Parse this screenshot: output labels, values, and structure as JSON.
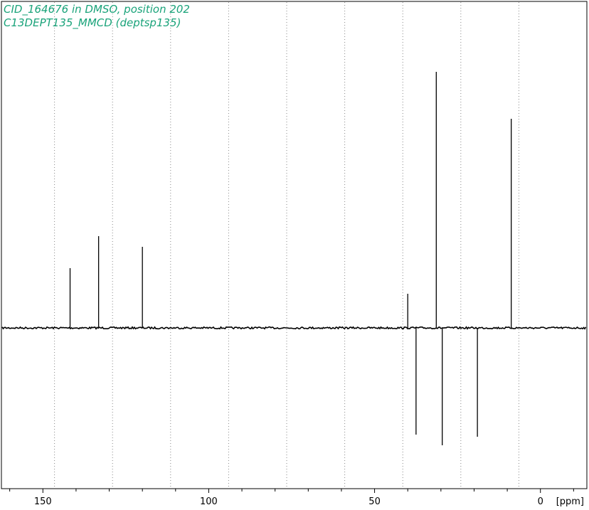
{
  "header": {
    "title_line1": "CID_164676 in DMSO, position 202",
    "title_line2": "C13DEPT135_MMCD (deptsp135)"
  },
  "colors": {
    "title": "#1aa37a",
    "spectrum": "#000000",
    "grid": "#888888",
    "frame": "#000000"
  },
  "chart_data": {
    "type": "line",
    "title": "CID_164676 in DMSO, position 202",
    "subtitle": "C13DEPT135_MMCD (deptsp135)",
    "xlabel": "[ppm]",
    "ylabel": "",
    "x_reversed": true,
    "xlim": [
      162.5,
      -14.0
    ],
    "ylim": [
      -1.13,
      1.27
    ],
    "grid": "vertical-dotted",
    "x_ticks": [
      150,
      100,
      50,
      0
    ],
    "x_tick_labels": [
      "150",
      "100",
      "50",
      "0"
    ],
    "x_tick_unit_label": "[ppm]",
    "x_minor_step": 10,
    "x_gridlines": [
      146.5,
      129.0,
      111.5,
      94.0,
      76.5,
      59.0,
      41.5,
      24.0,
      6.5
    ],
    "series": [
      {
        "values": [
          {
            "x": 141.8,
            "y": 0.28
          },
          {
            "x": 133.2,
            "y": 0.43
          },
          {
            "x": 120.0,
            "y": 0.38
          },
          {
            "x": 40.0,
            "y": 0.16
          },
          {
            "x": 37.5,
            "y": -0.5
          },
          {
            "x": 31.4,
            "y": 1.2
          },
          {
            "x": 29.6,
            "y": -0.55
          },
          {
            "x": 19.0,
            "y": -0.51
          },
          {
            "x": 8.8,
            "y": 0.98
          }
        ]
      }
    ]
  }
}
